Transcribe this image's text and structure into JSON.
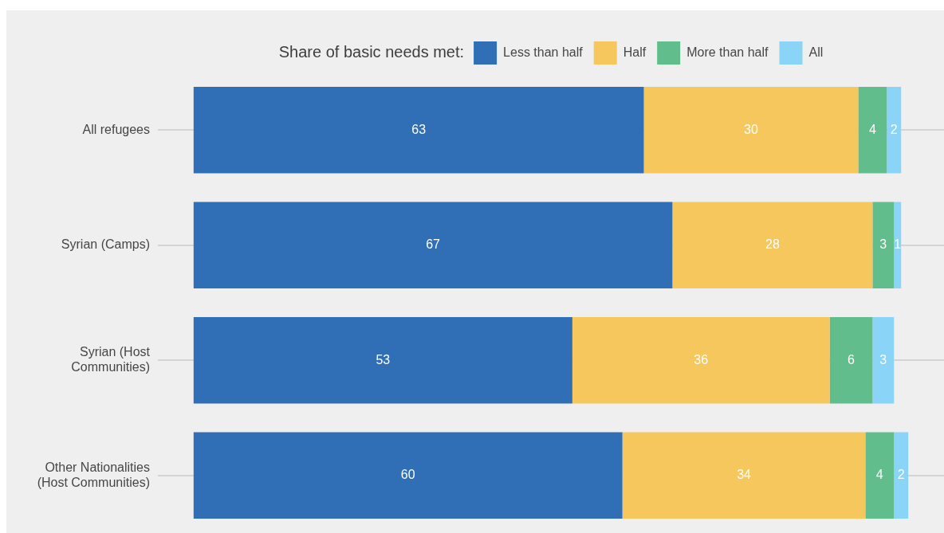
{
  "chart_data": {
    "type": "bar",
    "orientation": "horizontal",
    "stacked": true,
    "legend_title": "Share of basic needs met:",
    "legend": "top",
    "categories": [
      "All refugees",
      "Syrian (Camps)",
      "Syrian (Host Communities)",
      "Other Nationalities (Host Communities)"
    ],
    "series": [
      {
        "name": "Less than half",
        "color": "#306fb6",
        "values": [
          63,
          67,
          53,
          60
        ]
      },
      {
        "name": "Half",
        "color": "#f5c75d",
        "values": [
          30,
          28,
          36,
          34
        ]
      },
      {
        "name": "More than half",
        "color": "#62bd8c",
        "values": [
          4,
          3,
          6,
          4
        ]
      },
      {
        "name": "All",
        "color": "#8ad4f8",
        "values": [
          2,
          1,
          3,
          2
        ]
      }
    ],
    "xlim": [
      -5,
      105
    ],
    "data_labels": true,
    "grid": "y",
    "tick_labels": "y"
  }
}
